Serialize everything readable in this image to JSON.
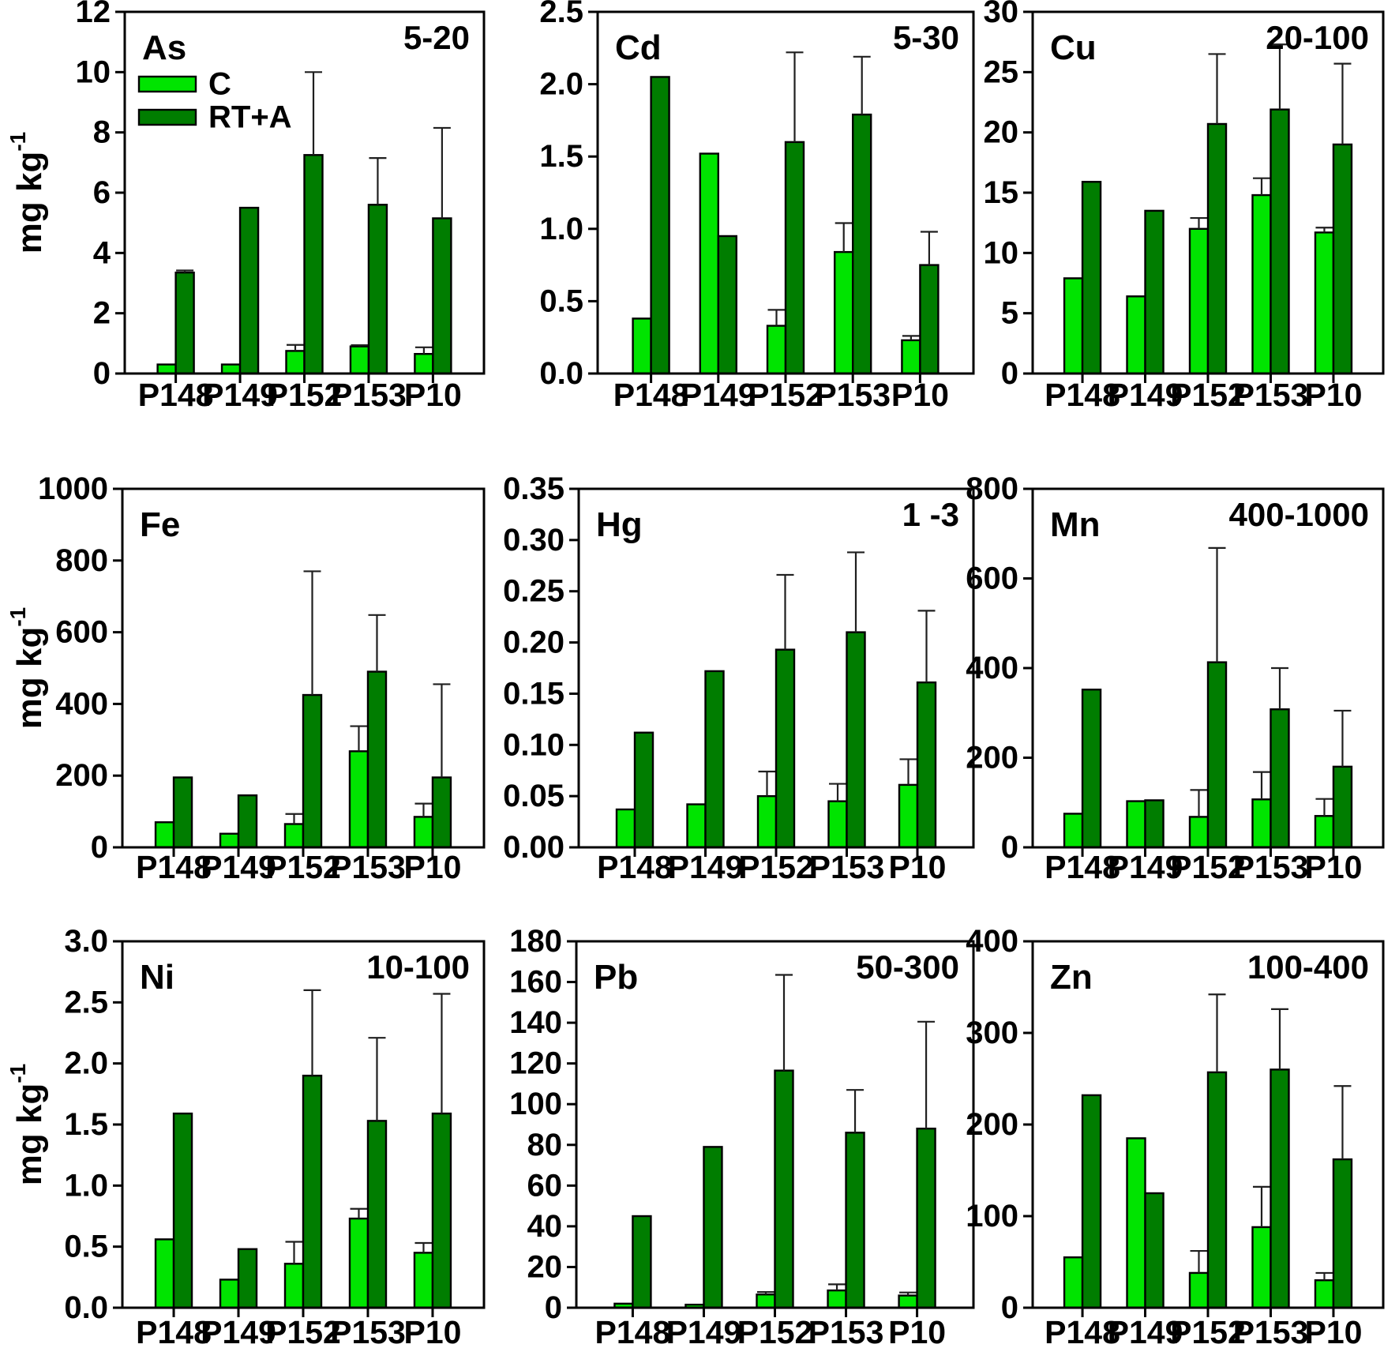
{
  "figure": {
    "background": "#ffffff",
    "y_axis_unit": "mg kg",
    "y_axis_unit_superscript": "-1"
  },
  "colors": {
    "c_series_fill": "#00E400",
    "rta_series_fill": "#007D00",
    "bar_outline": "#000000",
    "error_bar": "#1f1f1f",
    "axis": "#000000",
    "text": "#000000"
  },
  "legend": {
    "location": "inside-top-left-of-first-panel",
    "items": [
      {
        "label": "C"
      },
      {
        "label": "RT+A"
      }
    ]
  },
  "categories": [
    "P148",
    "P149",
    "P152",
    "P153",
    "P10"
  ],
  "chart_data": [
    {
      "type": "bar",
      "element": "As",
      "annotation": "5-20",
      "ylabel": "mg kg-1",
      "ylim": [
        0,
        12
      ],
      "ytick_step": 2,
      "ytick_decimals": 0,
      "grid": false,
      "show_legend": true,
      "show_ylabel": true,
      "categories": [
        "P148",
        "P149",
        "P152",
        "P153",
        "P10"
      ],
      "series": [
        {
          "name": "C",
          "values": [
            0.3,
            0.3,
            0.75,
            0.9,
            0.65
          ],
          "errors": [
            0,
            0,
            0.2,
            0.04,
            0.22
          ]
        },
        {
          "name": "RT+A",
          "values": [
            3.35,
            5.5,
            7.25,
            5.6,
            5.15
          ],
          "errors": [
            0.07,
            0,
            2.75,
            1.55,
            3.0
          ]
        }
      ]
    },
    {
      "type": "bar",
      "element": "Cd",
      "annotation": "5-30",
      "ylabel": "mg kg-1",
      "ylim": [
        0,
        2.5
      ],
      "ytick_step": 0.5,
      "ytick_decimals": 1,
      "grid": false,
      "show_legend": false,
      "show_ylabel": false,
      "categories": [
        "P148",
        "P149",
        "P152",
        "P153",
        "P10"
      ],
      "series": [
        {
          "name": "C",
          "values": [
            0.38,
            1.52,
            0.33,
            0.84,
            0.23
          ],
          "errors": [
            0,
            0,
            0.11,
            0.2,
            0.03
          ]
        },
        {
          "name": "RT+A",
          "values": [
            2.05,
            0.95,
            1.6,
            1.79,
            0.75
          ],
          "errors": [
            0,
            0,
            0.62,
            0.4,
            0.23
          ]
        }
      ]
    },
    {
      "type": "bar",
      "element": "Cu",
      "annotation": "20-100",
      "ylabel": "mg kg-1",
      "ylim": [
        0,
        30
      ],
      "ytick_step": 5,
      "ytick_decimals": 0,
      "grid": false,
      "show_legend": false,
      "show_ylabel": false,
      "categories": [
        "P148",
        "P149",
        "P152",
        "P153",
        "P10"
      ],
      "series": [
        {
          "name": "C",
          "values": [
            7.9,
            6.4,
            12.0,
            14.8,
            11.7
          ],
          "errors": [
            0,
            0,
            0.9,
            1.4,
            0.4
          ]
        },
        {
          "name": "RT+A",
          "values": [
            15.9,
            13.5,
            20.7,
            21.9,
            19.0
          ],
          "errors": [
            0,
            0,
            5.8,
            5.4,
            6.7
          ]
        }
      ]
    },
    {
      "type": "bar",
      "element": "Fe",
      "annotation": "",
      "ylabel": "mg kg-1",
      "ylim": [
        0,
        1000
      ],
      "ytick_step": 200,
      "ytick_decimals": 0,
      "grid": false,
      "show_legend": false,
      "show_ylabel": true,
      "categories": [
        "P148",
        "P149",
        "P152",
        "P153",
        "P10"
      ],
      "series": [
        {
          "name": "C",
          "values": [
            70,
            38,
            65,
            268,
            85
          ],
          "errors": [
            0,
            0,
            28,
            70,
            37
          ]
        },
        {
          "name": "RT+A",
          "values": [
            195,
            145,
            425,
            490,
            195
          ],
          "errors": [
            0,
            0,
            345,
            158,
            260
          ]
        }
      ]
    },
    {
      "type": "bar",
      "element": "Hg",
      "annotation": "1 -3",
      "ylabel": "mg kg-1",
      "ylim": [
        0,
        0.35
      ],
      "ytick_step": 0.05,
      "ytick_decimals": 2,
      "grid": false,
      "show_legend": false,
      "show_ylabel": false,
      "categories": [
        "P148",
        "P149",
        "P152",
        "P153",
        "P10"
      ],
      "series": [
        {
          "name": "C",
          "values": [
            0.037,
            0.042,
            0.05,
            0.045,
            0.061
          ],
          "errors": [
            0,
            0,
            0.024,
            0.017,
            0.025
          ]
        },
        {
          "name": "RT+A",
          "values": [
            0.112,
            0.172,
            0.193,
            0.21,
            0.161
          ],
          "errors": [
            0,
            0,
            0.073,
            0.078,
            0.07
          ]
        }
      ]
    },
    {
      "type": "bar",
      "element": "Mn",
      "annotation": "400-1000",
      "ylabel": "mg kg-1",
      "ylim": [
        0,
        800
      ],
      "ytick_step": 200,
      "ytick_decimals": 0,
      "grid": false,
      "show_legend": false,
      "show_ylabel": false,
      "categories": [
        "P148",
        "P149",
        "P152",
        "P153",
        "P10"
      ],
      "series": [
        {
          "name": "C",
          "values": [
            75,
            103,
            68,
            107,
            70
          ],
          "errors": [
            0,
            0,
            60,
            61,
            38
          ]
        },
        {
          "name": "RT+A",
          "values": [
            352,
            105,
            413,
            308,
            180
          ],
          "errors": [
            0,
            0,
            255,
            92,
            125
          ]
        }
      ]
    },
    {
      "type": "bar",
      "element": "Ni",
      "annotation": "10-100",
      "ylabel": "mg kg-1",
      "ylim": [
        0,
        3.0
      ],
      "ytick_step": 0.5,
      "ytick_decimals": 1,
      "grid": false,
      "show_legend": false,
      "show_ylabel": true,
      "categories": [
        "P148",
        "P149",
        "P152",
        "P153",
        "P10"
      ],
      "series": [
        {
          "name": "C",
          "values": [
            0.56,
            0.23,
            0.36,
            0.73,
            0.45
          ],
          "errors": [
            0,
            0,
            0.18,
            0.08,
            0.08
          ]
        },
        {
          "name": "RT+A",
          "values": [
            1.59,
            0.48,
            1.9,
            1.53,
            1.59
          ],
          "errors": [
            0,
            0,
            0.7,
            0.68,
            0.98
          ]
        }
      ]
    },
    {
      "type": "bar",
      "element": "Pb",
      "annotation": "50-300",
      "ylabel": "mg kg-1",
      "ylim": [
        0,
        180
      ],
      "ytick_step": 20,
      "ytick_decimals": 0,
      "grid": false,
      "show_legend": false,
      "show_ylabel": false,
      "categories": [
        "P148",
        "P149",
        "P152",
        "P153",
        "P10"
      ],
      "series": [
        {
          "name": "C",
          "values": [
            2,
            1.5,
            6.5,
            8.5,
            6
          ],
          "errors": [
            0,
            0,
            1.2,
            3,
            1.5
          ]
        },
        {
          "name": "RT+A",
          "values": [
            45,
            79,
            116.5,
            86,
            88
          ],
          "errors": [
            0,
            0,
            47,
            21,
            52.5
          ]
        }
      ]
    },
    {
      "type": "bar",
      "element": "Zn",
      "annotation": "100-400",
      "ylabel": "mg kg-1",
      "ylim": [
        0,
        400
      ],
      "ytick_step": 100,
      "ytick_decimals": 0,
      "grid": false,
      "show_legend": false,
      "show_ylabel": false,
      "categories": [
        "P148",
        "P149",
        "P152",
        "P153",
        "P10"
      ],
      "series": [
        {
          "name": "C",
          "values": [
            55,
            185,
            38,
            88,
            30
          ],
          "errors": [
            0,
            0,
            24,
            44,
            8
          ]
        },
        {
          "name": "RT+A",
          "values": [
            232,
            125,
            257,
            260,
            162
          ],
          "errors": [
            0,
            0,
            85,
            66,
            80
          ]
        }
      ]
    }
  ]
}
